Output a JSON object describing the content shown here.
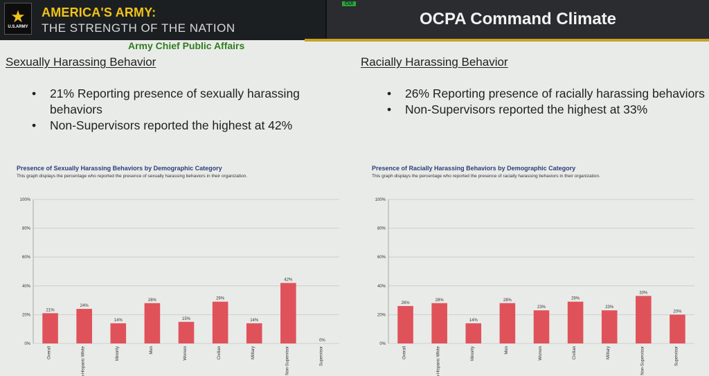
{
  "header": {
    "logo_text": "U.S.ARMY",
    "brand_line1": "AMERICA'S ARMY:",
    "brand_line2": "THE STRENGTH OF THE NATION",
    "cui_label": "CUI",
    "title": "OCPA Command Climate",
    "subtitle": "Army Chief Public Affairs"
  },
  "left_panel": {
    "heading": "Sexually Harassing Behavior",
    "bullets": [
      "21% Reporting presence of sexually harassing behaviors",
      "Non-Supervisors reported the highest at 42%"
    ]
  },
  "right_panel": {
    "heading": "Racially Harassing Behavior",
    "bullets": [
      "26% Reporting presence of racially harassing behaviors",
      "Non-Supervisors reported the highest at 33%"
    ]
  },
  "colors": {
    "bar": "#e0525a",
    "grid": "#c8c8c8",
    "axis_text": "#333333"
  },
  "chart_data": [
    {
      "type": "bar",
      "title": "Presence of Sexually Harassing Behaviors by Demographic Category",
      "subtitle": "This graph displays the percentage who reported the presence of sexually harassing behaviors in their organization.",
      "categories": [
        "Overall",
        "Non-Hispanic White",
        "Minority",
        "Men",
        "Women",
        "Civilian",
        "Military",
        "Non-Supervisor",
        "Supervisor"
      ],
      "values": [
        21,
        24,
        14,
        28,
        15,
        29,
        14,
        42,
        0
      ],
      "yticks": [
        "0%",
        "20%",
        "40%",
        "60%",
        "80%",
        "100%"
      ],
      "ylim": [
        0,
        100
      ]
    },
    {
      "type": "bar",
      "title": "Presence of Racially Harassing Behaviors by Demographic Category",
      "subtitle": "This graph displays the percentage who reported the presence of racially harassing behaviors in their organization.",
      "categories": [
        "Overall",
        "Non-Hispanic White",
        "Minority",
        "Men",
        "Women",
        "Civilian",
        "Military",
        "Non-Supervisor",
        "Supervisor"
      ],
      "values": [
        26,
        28,
        14,
        28,
        23,
        29,
        23,
        33,
        20
      ],
      "yticks": [
        "0%",
        "20%",
        "40%",
        "60%",
        "80%",
        "100%"
      ],
      "ylim": [
        0,
        100
      ]
    }
  ]
}
